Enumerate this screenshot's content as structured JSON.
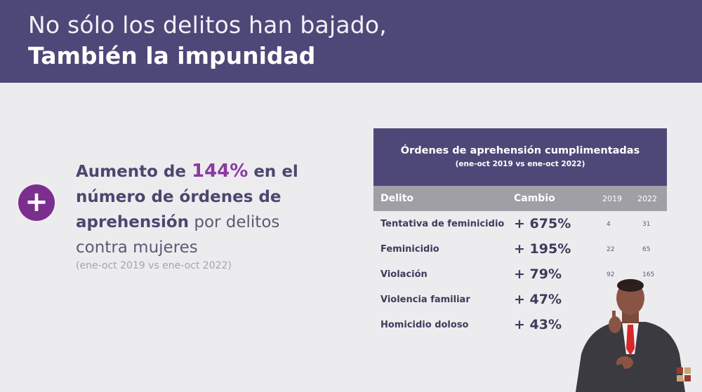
{
  "header": {
    "line1": "No sólo los delitos han bajado,",
    "line2": "También la impunidad"
  },
  "stat": {
    "part1": "Aumento de ",
    "pct": "144%",
    "part2": " en el número de órdenes de aprehensión",
    "part3": " por delitos contra mujeres",
    "note": "(ene-oct  2019 vs ene-oct 2022)"
  },
  "table": {
    "title": "Órdenes de aprehensión cumplimentadas",
    "subtitle": "(ene-oct 2019 vs ene-oct 2022)",
    "columns": [
      "Delito",
      "Cambio",
      "2019",
      "2022"
    ],
    "rows": [
      {
        "delito": "Tentativa de feminicidio",
        "cambio": "+ 675%",
        "y2019": "4",
        "y2022": "31"
      },
      {
        "delito": "Feminicidio",
        "cambio": "+ 195%",
        "y2019": "22",
        "y2022": "65"
      },
      {
        "delito": "Violación",
        "cambio": "+ 79%",
        "y2019": "92",
        "y2022": "165"
      },
      {
        "delito": "Violencia familiar",
        "cambio": "+ 47%",
        "y2019": "",
        "y2022": ""
      },
      {
        "delito": "Homicidio doloso",
        "cambio": "+ 43%",
        "y2019": "",
        "y2022": ""
      }
    ]
  },
  "colors": {
    "header_bg": "#4e4878",
    "accent_purple": "#7c2e8e",
    "text_dark": "#3e3b5c",
    "col_header_bg": "#a09fa6"
  },
  "icons": {
    "plus": "plus-icon",
    "interpreter": "sign-language-interpreter"
  }
}
